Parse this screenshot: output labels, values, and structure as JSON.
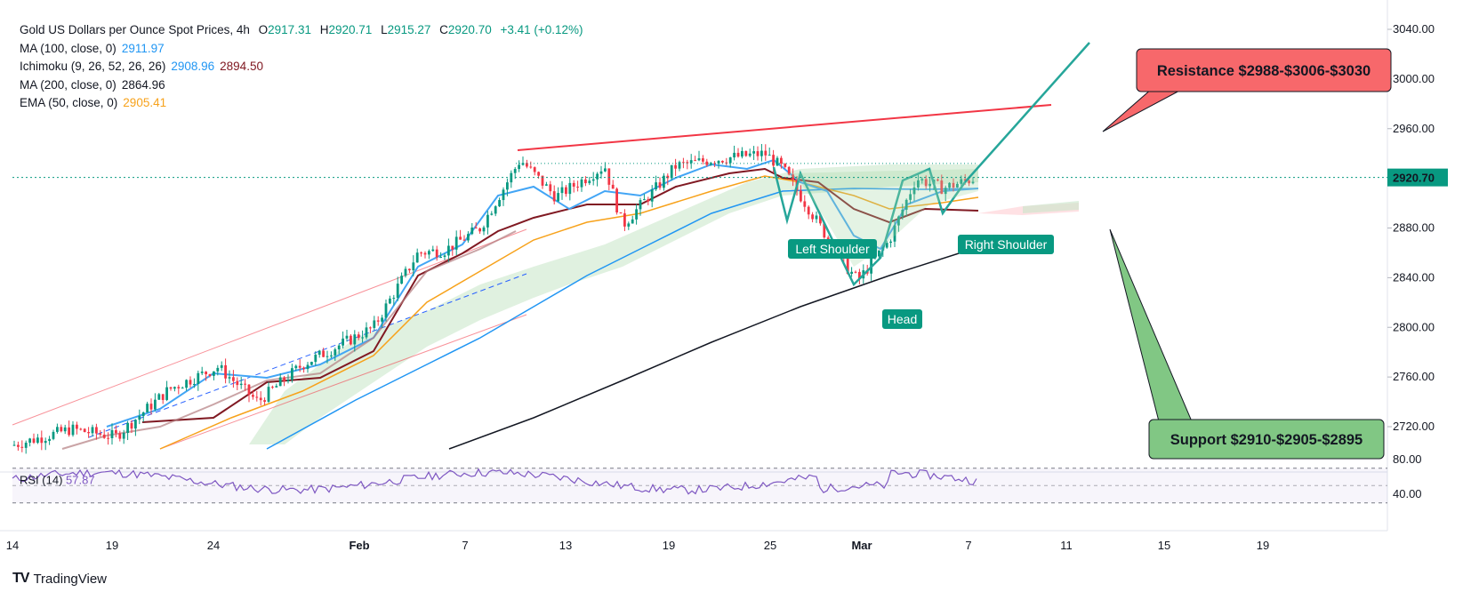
{
  "header": {
    "symbol": "Gold US Dollars per Ounce Spot Prices, 4h",
    "ohlc": {
      "o_label": "O",
      "o": "2917.31",
      "h_label": "H",
      "h": "2920.71",
      "l_label": "L",
      "l": "2915.27",
      "c_label": "C",
      "c": "2920.70",
      "chg": "+3.41 (+0.12%)"
    }
  },
  "indicators": [
    {
      "label": "MA (100, close, 0)",
      "values": [
        "2911.97"
      ],
      "colors": [
        "#2196f3"
      ]
    },
    {
      "label": "Ichimoku (9, 26, 52, 26, 26)",
      "values": [
        "2908.96",
        "2894.50"
      ],
      "colors": [
        "#2196f3",
        "#801922"
      ]
    },
    {
      "label": "MA (200, close, 0)",
      "values": [
        "2864.96"
      ],
      "colors": [
        "#131722"
      ]
    },
    {
      "label": "EMA (50, close, 0)",
      "values": [
        "2905.41"
      ],
      "colors": [
        "#f7a21b"
      ]
    }
  ],
  "chart_data": {
    "type": "candlestick",
    "y_ticks": [
      "3040.00",
      "3000.00",
      "2960.00",
      "2920.00",
      "2880.00",
      "2840.00",
      "2800.00",
      "2760.00",
      "2720.00"
    ],
    "x_ticks": [
      "14",
      "19",
      "24",
      "Feb",
      "7",
      "13",
      "19",
      "25",
      "Mar",
      "7",
      "11",
      "15",
      "19"
    ],
    "last_price": "2920.70",
    "rsi": {
      "label": "RSI (14)",
      "value": "57.87",
      "ticks": [
        "80.00",
        "40.00"
      ]
    },
    "annotations": {
      "resistance": "Resistance $2988-$3006-$3030",
      "support": "Support $2910-$2905-$2895",
      "left_shoulder": "Left Shoulder",
      "head": "Head",
      "right_shoulder": "Right Shoulder"
    },
    "colors": {
      "up": "#089981",
      "down": "#f23645",
      "ma100": "#2196f3",
      "ma200": "#131722",
      "ema50": "#f7a21b",
      "kijun": "#801922",
      "resistance": "#f23645",
      "support_box": "#81c784",
      "resistance_box": "#f7686b"
    }
  },
  "branding": {
    "name": "TradingView"
  }
}
